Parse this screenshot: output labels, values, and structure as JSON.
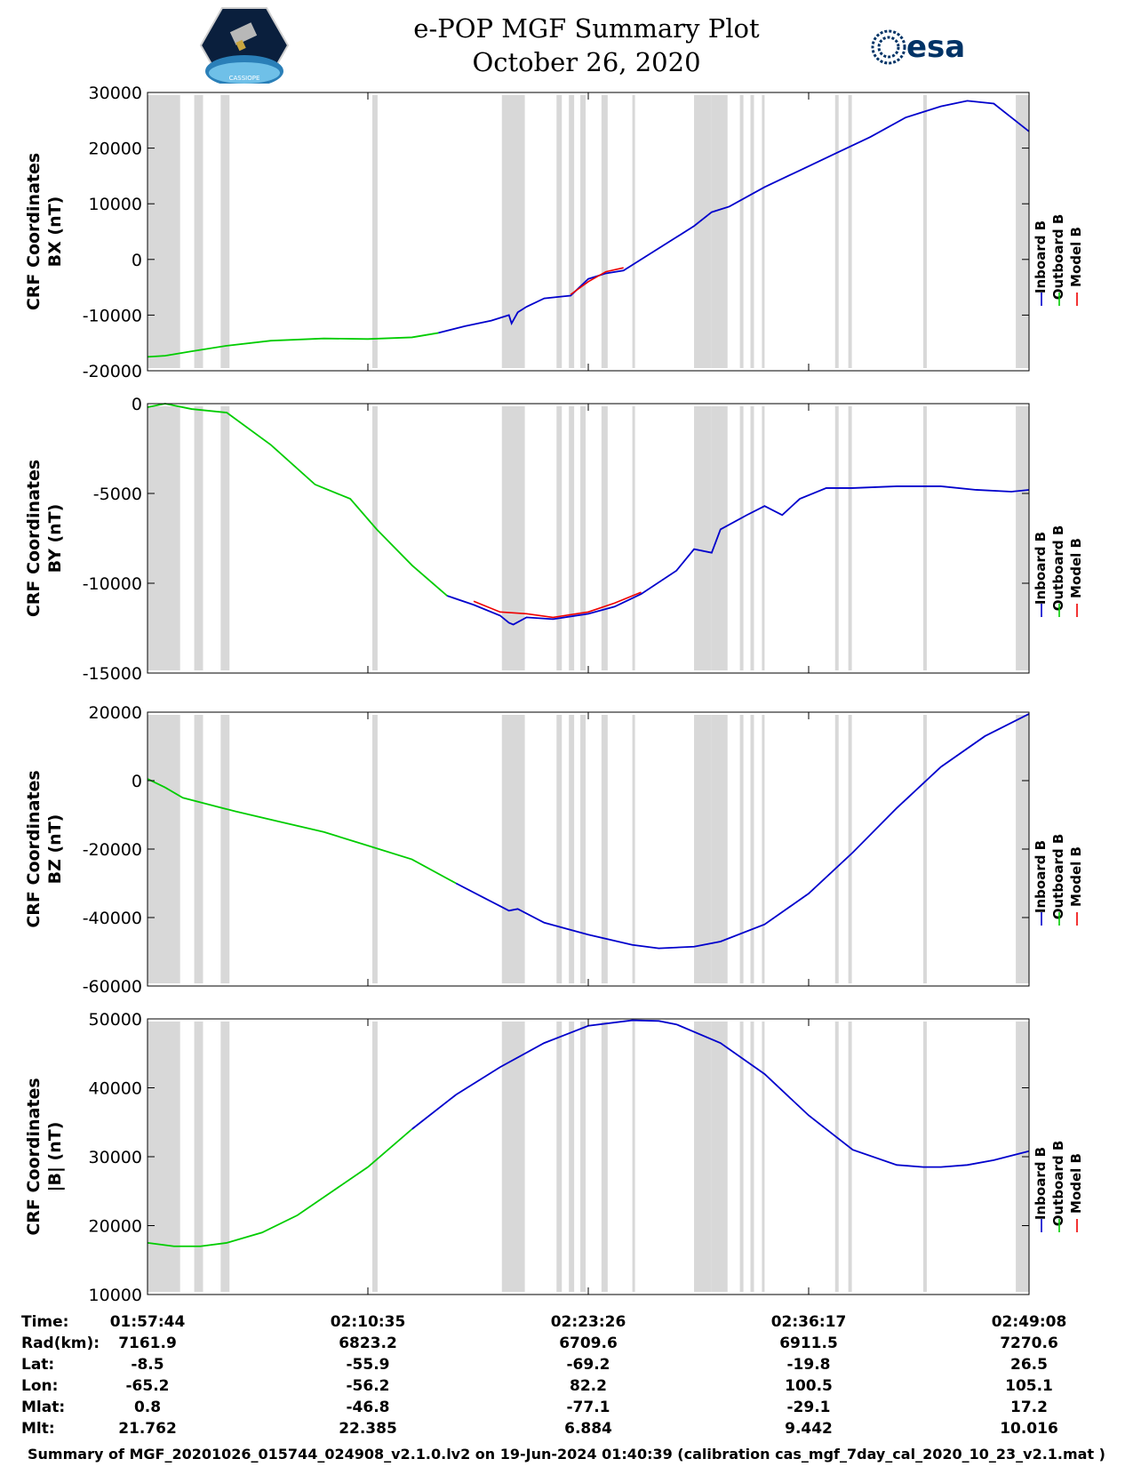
{
  "header": {
    "title_line1": "e-POP MGF Summary Plot",
    "title_line2": "October 26, 2020",
    "left_logo_text": "CASSIOPE",
    "right_logo_text": "esa"
  },
  "colors": {
    "inboard": "#0000cc",
    "outboard": "#00cc00",
    "model": "#ee0000",
    "shade": "#d8d8d8"
  },
  "legend": [
    "Inboard B",
    "Outboard B",
    "Model B"
  ],
  "chart_data": [
    {
      "type": "line",
      "ylabel_line1": "CRF Coordinates",
      "ylabel_line2": "BX (nT)",
      "ylim": [
        -20000,
        30000
      ],
      "yticks": [
        -20000,
        -10000,
        0,
        10000,
        20000,
        30000
      ],
      "ytick_labels": [
        "-20000",
        "-10000",
        "0",
        "10000",
        "20000",
        "30000"
      ],
      "switch_x": 0.33,
      "series": [
        {
          "name": "Inboard/Outboard B",
          "x": [
            0,
            0.02,
            0.05,
            0.09,
            0.14,
            0.2,
            0.25,
            0.3,
            0.33,
            0.36,
            0.39,
            0.41,
            0.413,
            0.42,
            0.43,
            0.45,
            0.48,
            0.49,
            0.5,
            0.52,
            0.54,
            0.56,
            0.58,
            0.6,
            0.62,
            0.64,
            0.66,
            0.7,
            0.74,
            0.78,
            0.82,
            0.86,
            0.9,
            0.93,
            0.96,
            1.0
          ],
          "y": [
            -17500,
            -17300,
            -16500,
            -15500,
            -14600,
            -14200,
            -14300,
            -14000,
            -13200,
            -12000,
            -11000,
            -10000,
            -11500,
            -9500,
            -8500,
            -7000,
            -6500,
            -5000,
            -3500,
            -2500,
            -2000,
            0,
            2000,
            4000,
            6000,
            8500,
            9500,
            13000,
            16000,
            19000,
            22000,
            25500,
            27500,
            28500,
            28000,
            23000
          ]
        },
        {
          "name": "Model B",
          "x": [
            0.48,
            0.5,
            0.52,
            0.54
          ],
          "y": [
            -6300,
            -4000,
            -2200,
            -1500
          ]
        }
      ]
    },
    {
      "type": "line",
      "ylabel_line1": "CRF Coordinates",
      "ylabel_line2": "BY (nT)",
      "ylim": [
        -15000,
        0
      ],
      "yticks": [
        -15000,
        -10000,
        -5000,
        0
      ],
      "ytick_labels": [
        "-15000",
        "-10000",
        "-5000",
        "0"
      ],
      "switch_x": 0.34,
      "series": [
        {
          "name": "Inboard/Outboard B",
          "x": [
            0,
            0.02,
            0.05,
            0.09,
            0.14,
            0.19,
            0.23,
            0.26,
            0.3,
            0.34,
            0.37,
            0.4,
            0.41,
            0.415,
            0.43,
            0.46,
            0.5,
            0.53,
            0.56,
            0.6,
            0.62,
            0.64,
            0.65,
            0.68,
            0.7,
            0.72,
            0.74,
            0.77,
            0.8,
            0.85,
            0.9,
            0.94,
            0.98,
            1.0
          ],
          "y": [
            -200,
            0,
            -300,
            -500,
            -2300,
            -4500,
            -5300,
            -7000,
            -9000,
            -10700,
            -11200,
            -11800,
            -12200,
            -12300,
            -11900,
            -12000,
            -11700,
            -11300,
            -10600,
            -9300,
            -8100,
            -8300,
            -7000,
            -6200,
            -5700,
            -6200,
            -5300,
            -4700,
            -4700,
            -4600,
            -4600,
            -4800,
            -4900,
            -4800
          ]
        },
        {
          "name": "Model B",
          "x": [
            0.37,
            0.4,
            0.43,
            0.46,
            0.5,
            0.53,
            0.56
          ],
          "y": [
            -11000,
            -11600,
            -11700,
            -11900,
            -11600,
            -11100,
            -10500
          ]
        }
      ]
    },
    {
      "type": "line",
      "ylabel_line1": "CRF Coordinates",
      "ylabel_line2": "BZ (nT)",
      "ylim": [
        -60000,
        20000
      ],
      "yticks": [
        -60000,
        -40000,
        -20000,
        0,
        20000
      ],
      "ytick_labels": [
        "-60000",
        "-40000",
        "-20000",
        "0",
        "20000"
      ],
      "switch_x": 0.35,
      "series": [
        {
          "name": "Inboard/Outboard B",
          "x": [
            0,
            0.02,
            0.04,
            0.07,
            0.1,
            0.15,
            0.2,
            0.25,
            0.3,
            0.35,
            0.38,
            0.41,
            0.42,
            0.45,
            0.5,
            0.55,
            0.58,
            0.62,
            0.65,
            0.7,
            0.75,
            0.8,
            0.85,
            0.9,
            0.95,
            1.0
          ],
          "y": [
            500,
            -2000,
            -5000,
            -7000,
            -9000,
            -12000,
            -15000,
            -19000,
            -23000,
            -30000,
            -34000,
            -38000,
            -37500,
            -41500,
            -45000,
            -48000,
            -49000,
            -48500,
            -47000,
            -42000,
            -33000,
            -21000,
            -8000,
            4000,
            13000,
            19500
          ]
        }
      ]
    },
    {
      "type": "line",
      "ylabel_line1": "CRF Coordinates",
      "ylabel_line2": "|B| (nT)",
      "ylim": [
        10000,
        50000
      ],
      "yticks": [
        10000,
        20000,
        30000,
        40000,
        50000
      ],
      "ytick_labels": [
        "10000",
        "20000",
        "30000",
        "40000",
        "50000"
      ],
      "switch_x": 0.3,
      "series": [
        {
          "name": "Inboard/Outboard B",
          "x": [
            0,
            0.03,
            0.06,
            0.09,
            0.13,
            0.17,
            0.21,
            0.25,
            0.3,
            0.35,
            0.4,
            0.45,
            0.5,
            0.55,
            0.58,
            0.6,
            0.65,
            0.7,
            0.75,
            0.8,
            0.85,
            0.88,
            0.9,
            0.93,
            0.96,
            1.0
          ],
          "y": [
            17500,
            17000,
            17000,
            17500,
            19000,
            21500,
            25000,
            28500,
            34000,
            39000,
            43000,
            46500,
            49000,
            49800,
            49700,
            49200,
            46500,
            42000,
            36000,
            31000,
            28800,
            28500,
            28500,
            28800,
            29500,
            30800
          ]
        }
      ]
    }
  ],
  "gap_bands": [
    [
      0,
      0.037
    ],
    [
      0.053,
      0.063
    ],
    [
      0.083,
      0.093
    ],
    [
      0.255,
      0.261
    ],
    [
      0.402,
      0.428
    ],
    [
      0.464,
      0.47
    ],
    [
      0.478,
      0.484
    ],
    [
      0.491,
      0.497
    ],
    [
      0.515,
      0.522
    ],
    [
      0.55,
      0.553
    ],
    [
      0.62,
      0.64
    ],
    [
      0.64,
      0.658
    ],
    [
      0.672,
      0.676
    ],
    [
      0.684,
      0.688
    ],
    [
      0.697,
      0.7
    ],
    [
      0.78,
      0.784
    ],
    [
      0.795,
      0.799
    ],
    [
      0.88,
      0.884
    ],
    [
      0.985,
      1.0
    ]
  ],
  "info": {
    "labels": [
      "Time:",
      "Rad(km):",
      "Lat:",
      "Lon:",
      "Mlat:",
      "Mlt:"
    ],
    "columns": [
      {
        "time": "01:57:44",
        "rad": "7161.9",
        "lat": "-8.5",
        "lon": "-65.2",
        "mlat": "0.8",
        "mlt": "21.762"
      },
      {
        "time": "02:10:35",
        "rad": "6823.2",
        "lat": "-55.9",
        "lon": "-56.2",
        "mlat": "-46.8",
        "mlt": "22.385"
      },
      {
        "time": "02:23:26",
        "rad": "6709.6",
        "lat": "-69.2",
        "lon": "82.2",
        "mlat": "-77.1",
        "mlt": "6.884"
      },
      {
        "time": "02:36:17",
        "rad": "6911.5",
        "lat": "-19.8",
        "lon": "100.5",
        "mlat": "-29.1",
        "mlt": "9.442"
      },
      {
        "time": "02:49:08",
        "rad": "7270.6",
        "lat": "26.5",
        "lon": "105.1",
        "mlat": "17.2",
        "mlt": "10.016"
      }
    ]
  },
  "footer": "Summary of MGF_20201026_015744_024908_v2.1.0.lv2 on 19-Jun-2024 01:40:39 (calibration cas_mgf_7day_cal_2020_10_23_v2.1.mat )"
}
